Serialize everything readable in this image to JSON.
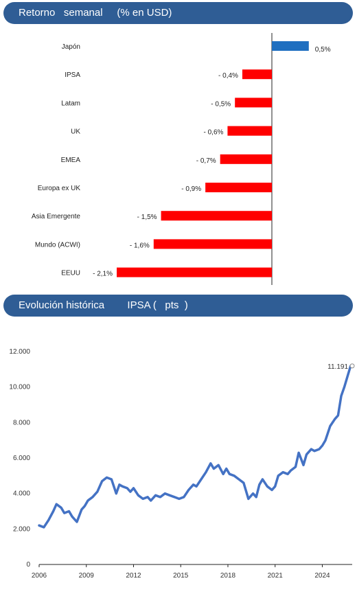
{
  "banners": {
    "weekly_title": "Retorno   semanal     (% en USD)",
    "history_title": "Evolución histórica        IPSA (   pts  )"
  },
  "colors": {
    "banner": "#2f5d95",
    "positive_bar": "#1f6fc0",
    "negative_bar": "#ff0000",
    "line": "#4472c4"
  },
  "chart_data": [
    {
      "type": "bar",
      "orientation": "horizontal",
      "categories": [
        "Japón",
        "IPSA",
        "Latam",
        "UK",
        "EMEA",
        "Europa ex UK",
        "Asia Emergente",
        "Mundo (ACWI)",
        "EEUU"
      ],
      "values": [
        0.5,
        -0.4,
        -0.5,
        -0.6,
        -0.7,
        -0.9,
        -1.5,
        -1.6,
        -2.1
      ],
      "data_labels": [
        "0,5%",
        "- 0,4%",
        "- 0,5%",
        "- 0,6%",
        "- 0,7%",
        "- 0,9%",
        "- 1,5%",
        "- 1,6%",
        "- 2,1%"
      ],
      "title": "Retorno   semanal     (% en USD)",
      "xlim": [
        -2.1,
        0.5
      ]
    },
    {
      "type": "line",
      "title": "Evolución histórica        IPSA (   pts  )",
      "xlim": [
        2006,
        2025.9
      ],
      "ylim": [
        0,
        12000
      ],
      "x_ticks": [
        "2006",
        "2009",
        "2012",
        "2015",
        "2018",
        "2021",
        "2024"
      ],
      "y_ticks": [
        "0",
        "2.000",
        "4.000",
        "6.000",
        "8.000",
        "10.000",
        "12.000"
      ],
      "annotation": "11.191",
      "series": [
        {
          "x": [
            2006.0,
            2006.3,
            2006.6,
            2006.9,
            2007.1,
            2007.4,
            2007.6,
            2007.9,
            2008.1,
            2008.4,
            2008.7,
            2008.9,
            2009.1,
            2009.4,
            2009.7,
            2010.0,
            2010.3,
            2010.6,
            2010.9,
            2011.1,
            2011.3,
            2011.6,
            2011.8,
            2012.0,
            2012.3,
            2012.6,
            2012.9,
            2013.1,
            2013.4,
            2013.7,
            2014.0,
            2014.3,
            2014.6,
            2014.9,
            2015.2,
            2015.5,
            2015.8,
            2016.0,
            2016.3,
            2016.6,
            2016.9,
            2017.1,
            2017.4,
            2017.7,
            2017.9,
            2018.1,
            2018.4,
            2018.7,
            2019.0,
            2019.3,
            2019.6,
            2019.8,
            2020.0,
            2020.2,
            2020.5,
            2020.8,
            2021.0,
            2021.2,
            2021.5,
            2021.8,
            2022.0,
            2022.3,
            2022.5,
            2022.8,
            2023.0,
            2023.3,
            2023.5,
            2023.8,
            2024.0,
            2024.2,
            2024.5,
            2024.8,
            2025.0,
            2025.2,
            2025.4,
            2025.6,
            2025.8,
            2025.9
          ],
          "values": [
            2200,
            2100,
            2500,
            3000,
            3400,
            3200,
            2900,
            3000,
            2700,
            2400,
            3100,
            3300,
            3600,
            3800,
            4100,
            4700,
            4900,
            4800,
            4000,
            4500,
            4400,
            4300,
            4100,
            4300,
            3900,
            3700,
            3800,
            3600,
            3900,
            3800,
            4000,
            3900,
            3800,
            3700,
            3800,
            4200,
            4500,
            4400,
            4800,
            5200,
            5700,
            5400,
            5600,
            5100,
            5400,
            5100,
            5000,
            4800,
            4600,
            3700,
            4000,
            3800,
            4500,
            4800,
            4400,
            4200,
            4400,
            5000,
            5200,
            5100,
            5300,
            5500,
            6300,
            5600,
            6200,
            6500,
            6400,
            6500,
            6700,
            7000,
            7800,
            8200,
            8400,
            9500,
            10000,
            10600,
            11191,
            11191
          ]
        }
      ]
    }
  ]
}
